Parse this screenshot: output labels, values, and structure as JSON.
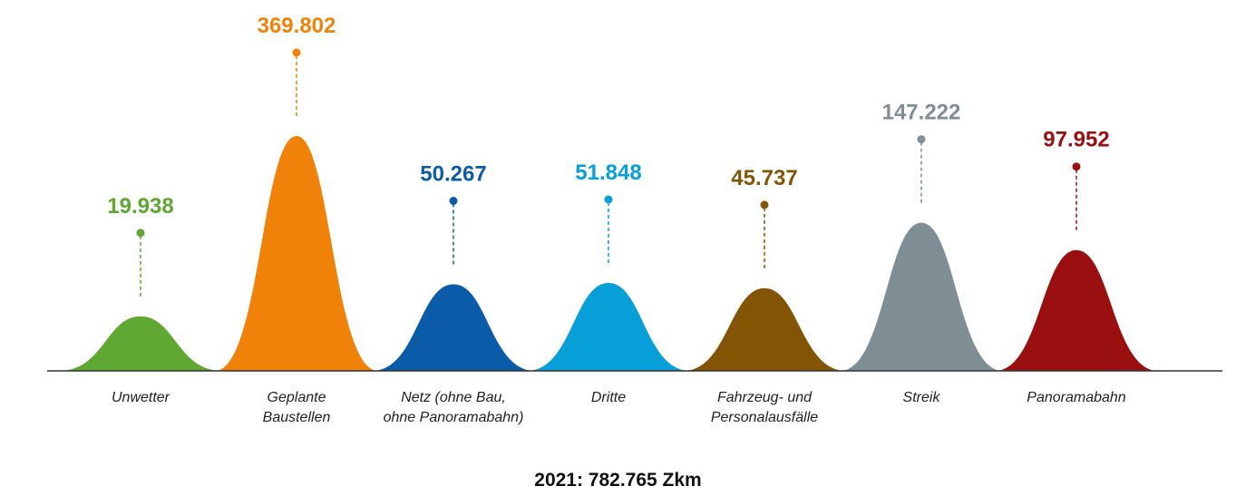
{
  "chart_data": {
    "type": "area",
    "total_label": "2021: 782.765 Zkm",
    "series": [
      {
        "category": [
          "Unwetter"
        ],
        "value": 19938,
        "value_label": "19.938",
        "color": "#5fa832"
      },
      {
        "category": [
          "Geplante",
          "Baustellen"
        ],
        "value": 369802,
        "value_label": "369.802",
        "color": "#f0820a"
      },
      {
        "category": [
          "Netz (ohne Bau,",
          "ohne Panoramabahn)"
        ],
        "value": 50267,
        "value_label": "50.267",
        "color": "#0a5ca8"
      },
      {
        "category": [
          "Dritte"
        ],
        "value": 51848,
        "value_label": "51.848",
        "color": "#079fd8"
      },
      {
        "category": [
          "Fahrzeug- und",
          "Personalausfälle"
        ],
        "value": 45737,
        "value_label": "45.737",
        "color": "#845405"
      },
      {
        "category": [
          "Streik"
        ],
        "value": 147222,
        "value_label": "147.222",
        "color": "#7f8e94"
      },
      {
        "category": [
          "Panoramabahn"
        ],
        "value": 97952,
        "value_label": "97.952",
        "color": "#9a1010"
      }
    ]
  }
}
